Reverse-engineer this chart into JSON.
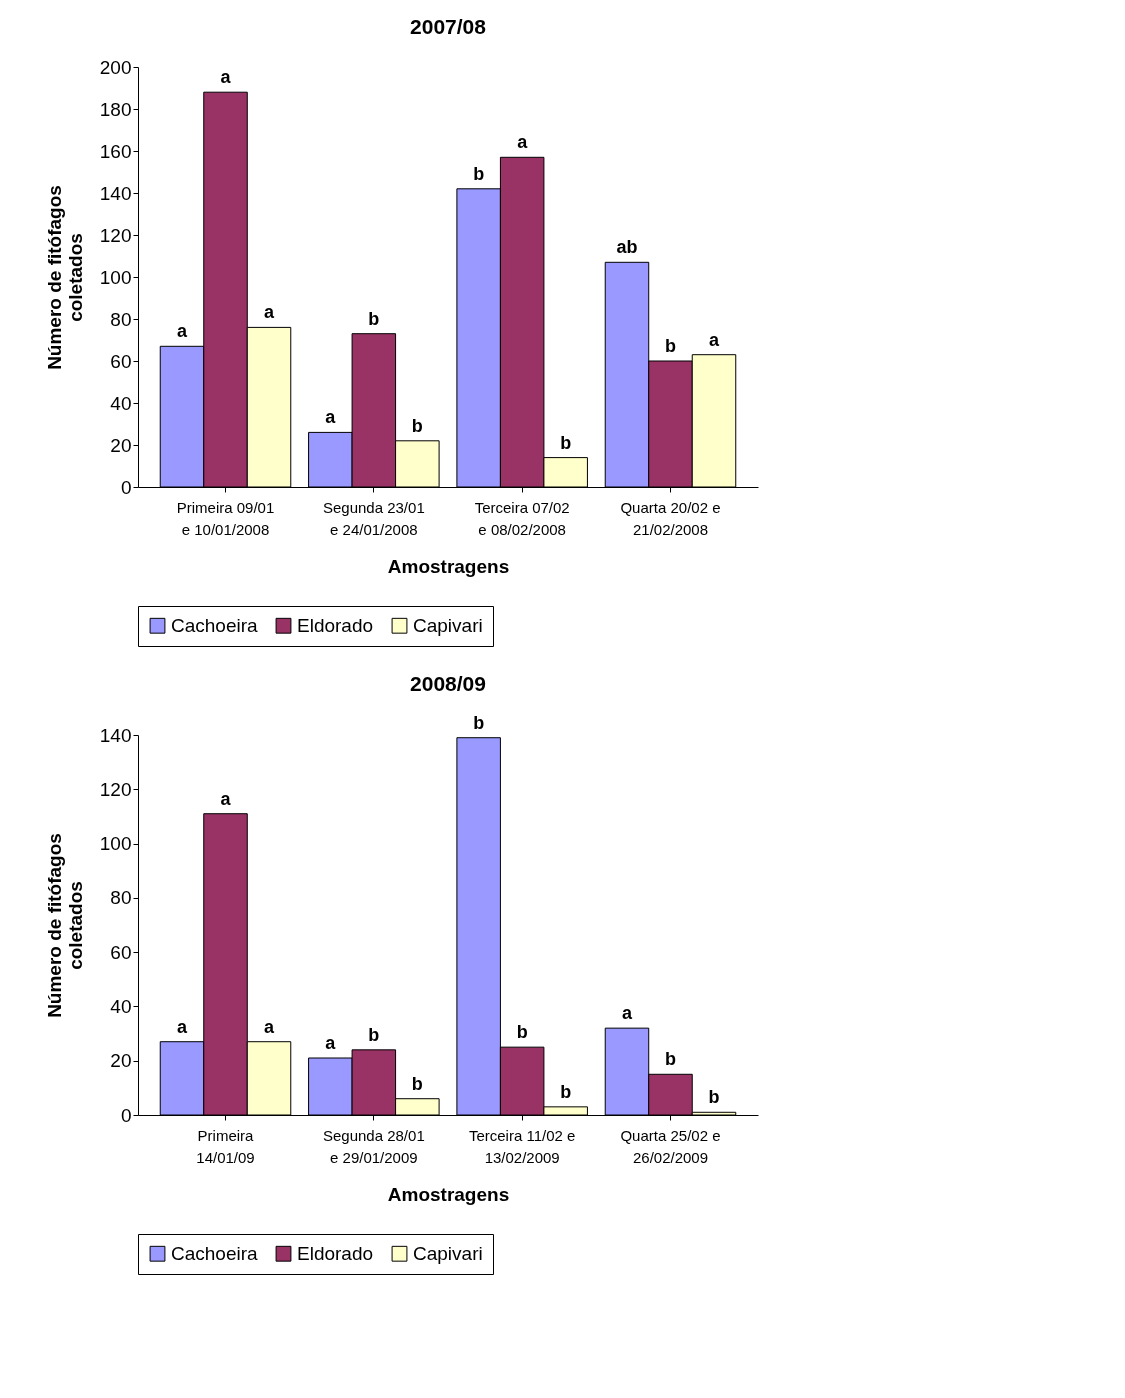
{
  "chart_data": [
    {
      "type": "bar",
      "title": "2007/08",
      "xlabel": "Amostragens",
      "ylabel": "Número de fitófagos coletados",
      "categories": [
        "Primeira 09/01\ne 10/01/2008",
        "Segunda 23/01\ne 24/01/2008",
        "Terceira 07/02\ne 08/02/2008",
        "Quarta 20/02 e\n21/02/2008"
      ],
      "ylim": [
        0,
        200
      ],
      "yticks": [
        0,
        20,
        40,
        60,
        80,
        100,
        120,
        140,
        160,
        180,
        200
      ],
      "legend": "bottom",
      "series": [
        {
          "name": "Cachoeira",
          "color": "#9999ff",
          "values": [
            67,
            26,
            142,
            107
          ],
          "value_labels": [
            "a",
            "a",
            "b",
            "ab"
          ]
        },
        {
          "name": "Eldorado",
          "color": "#993366",
          "values": [
            188,
            73,
            157,
            60
          ],
          "value_labels": [
            "a",
            "b",
            "a",
            "b"
          ]
        },
        {
          "name": "Capivari",
          "color": "#ffffcc",
          "values": [
            76,
            22,
            14,
            63
          ],
          "value_labels": [
            "a",
            "b",
            "b",
            "a"
          ]
        }
      ]
    },
    {
      "type": "bar",
      "title": "2008/09",
      "xlabel": "Amostragens",
      "ylabel": "Número de fitófagos coletados",
      "categories": [
        "Primeira\n14/01/09",
        "Segunda 28/01\ne 29/01/2009",
        "Terceira 11/02 e\n13/02/2009",
        "Quarta 25/02 e\n26/02/2009"
      ],
      "ylim": [
        0,
        140
      ],
      "yticks": [
        0,
        20,
        40,
        60,
        80,
        100,
        120,
        140
      ],
      "legend": "bottom",
      "series": [
        {
          "name": "Cachoeira",
          "color": "#9999ff",
          "values": [
            27,
            21,
            139,
            32
          ],
          "value_labels": [
            "a",
            "a",
            "b",
            "a"
          ]
        },
        {
          "name": "Eldorado",
          "color": "#993366",
          "values": [
            111,
            24,
            25,
            15
          ],
          "value_labels": [
            "a",
            "b",
            "b",
            "b"
          ]
        },
        {
          "name": "Capivari",
          "color": "#ffffcc",
          "values": [
            27,
            6,
            3,
            1
          ],
          "value_labels": [
            "a",
            "b",
            "b",
            "b"
          ]
        }
      ]
    }
  ]
}
